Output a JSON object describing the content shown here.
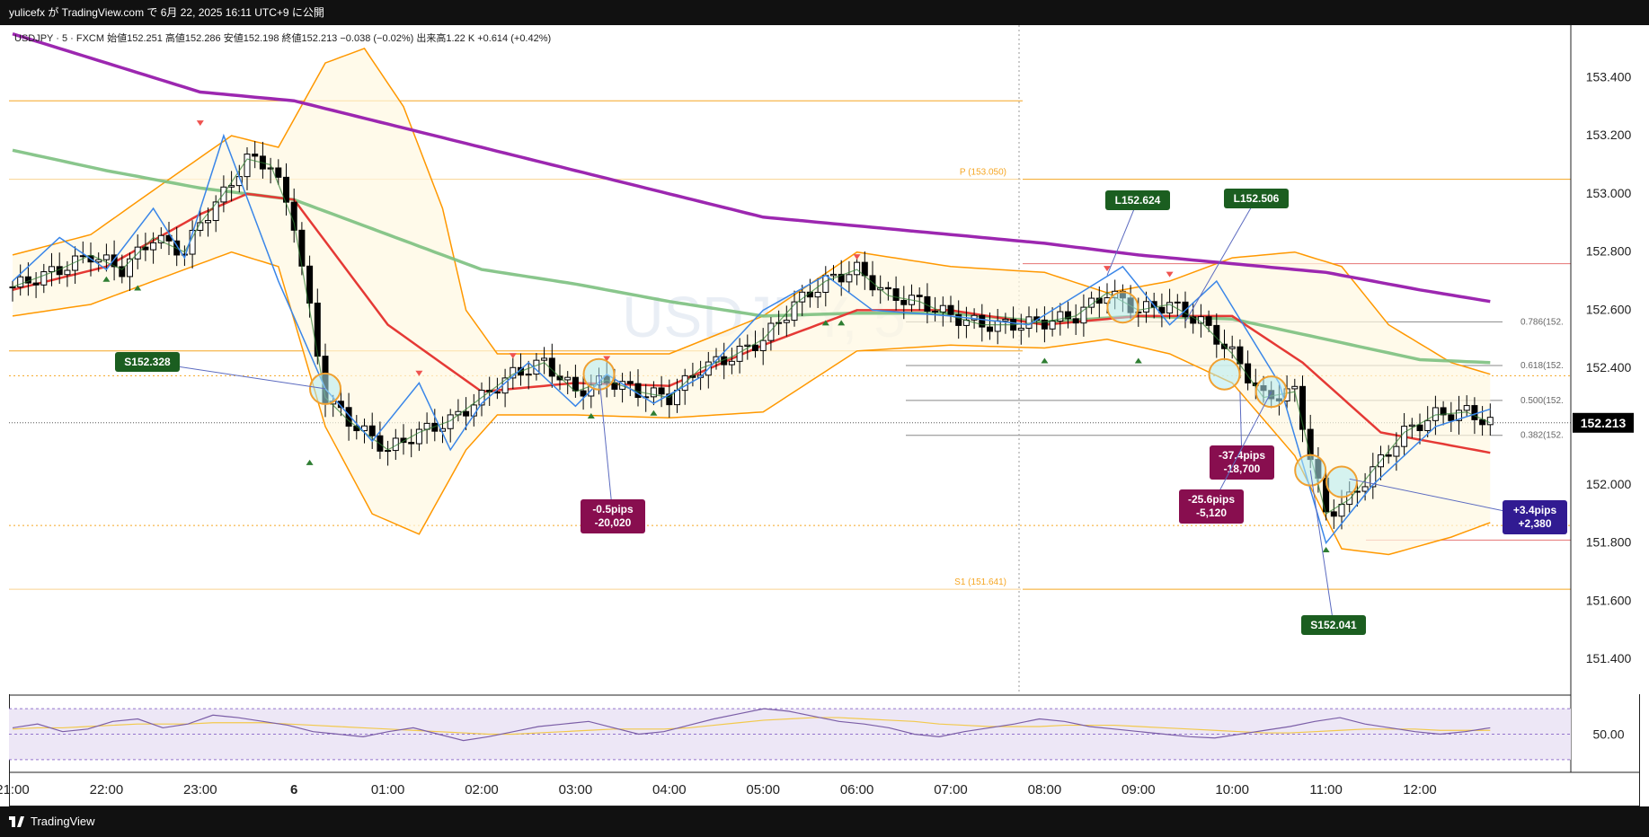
{
  "header": {
    "publish_line": "yulicefx が TradingView.com で 6月 22, 2025 16:11 UTC+9 に公開"
  },
  "symbol_line": "USDJPY · 5 · FXCM  始値152.251  高値152.286  安値152.198  終値152.213  −0.038 (−0.02%)  出来高1.22 K  +0.614 (+0.42%)",
  "watermark": "USDJPY, 5",
  "footer": {
    "brand": "TradingView"
  },
  "colors": {
    "bull": "#ffffff",
    "bear": "#000000",
    "sma_red": "#e53935",
    "sma_green": "#7cc07f",
    "sma_purple": "#9c27b0",
    "bb": "#ff9800",
    "zigzag": "#3a86e8",
    "orange_line": "#f5a623",
    "rsi_line": "#7b5ea7",
    "rsi_ma": "#f2c94c",
    "rsi_bg": "#ede7f6"
  },
  "chart_data": {
    "type": "line",
    "title": "",
    "y_range": [
      151.28,
      153.58
    ],
    "y_ticks": [
      "153.400",
      "153.200",
      "153.000",
      "152.800",
      "152.600",
      "152.400",
      "152.000",
      "151.800",
      "151.600",
      "151.400"
    ],
    "y_tick_values": [
      153.4,
      153.2,
      153.0,
      152.8,
      152.6,
      152.4,
      152.0,
      151.8,
      151.6,
      151.4
    ],
    "last_price_label": "152.213",
    "last_price": 152.213,
    "x_labels": [
      "21:00",
      "22:00",
      "23:00",
      "6",
      "01:00",
      "02:00",
      "03:00",
      "04:00",
      "05:00",
      "06:00",
      "07:00",
      "08:00",
      "09:00",
      "10:00",
      "11:00",
      "12:00"
    ],
    "x_label_bars": [
      0,
      12,
      24,
      36,
      48,
      60,
      72,
      84,
      96,
      108,
      120,
      132,
      144,
      156,
      168,
      180
    ],
    "bars_count": 190,
    "levels": [
      {
        "label": "P (153.050)",
        "price": 153.05
      },
      {
        "label": "S1 (151.641)",
        "price": 151.641
      }
    ],
    "fib": [
      {
        "label": "0.786(152.",
        "price": 152.56
      },
      {
        "label": "0.618(152.",
        "price": 152.41
      },
      {
        "label": "0.500(152.",
        "price": 152.29
      },
      {
        "label": "0.382(152.",
        "price": 152.17
      }
    ],
    "close_anchors": [
      [
        0,
        152.68
      ],
      [
        6,
        152.74
      ],
      [
        10,
        152.79
      ],
      [
        14,
        152.74
      ],
      [
        18,
        152.85
      ],
      [
        22,
        152.8
      ],
      [
        24,
        152.9
      ],
      [
        27,
        153.0
      ],
      [
        30,
        153.12
      ],
      [
        33,
        153.1
      ],
      [
        36,
        152.9
      ],
      [
        40,
        152.3
      ],
      [
        43,
        152.22
      ],
      [
        48,
        152.12
      ],
      [
        52,
        152.18
      ],
      [
        56,
        152.22
      ],
      [
        60,
        152.3
      ],
      [
        64,
        152.38
      ],
      [
        68,
        152.42
      ],
      [
        72,
        152.32
      ],
      [
        76,
        152.36
      ],
      [
        80,
        152.32
      ],
      [
        84,
        152.3
      ],
      [
        88,
        152.4
      ],
      [
        92,
        152.44
      ],
      [
        96,
        152.5
      ],
      [
        100,
        152.62
      ],
      [
        104,
        152.7
      ],
      [
        108,
        152.74
      ],
      [
        112,
        152.65
      ],
      [
        116,
        152.63
      ],
      [
        120,
        152.58
      ],
      [
        124,
        152.55
      ],
      [
        128,
        152.55
      ],
      [
        132,
        152.56
      ],
      [
        136,
        152.58
      ],
      [
        140,
        152.66
      ],
      [
        144,
        152.6
      ],
      [
        148,
        152.62
      ],
      [
        152,
        152.56
      ],
      [
        156,
        152.45
      ],
      [
        160,
        152.3
      ],
      [
        164,
        152.32
      ],
      [
        166,
        152.1
      ],
      [
        168,
        151.9
      ],
      [
        171,
        151.95
      ],
      [
        174,
        152.05
      ],
      [
        178,
        152.18
      ],
      [
        182,
        152.24
      ],
      [
        186,
        152.25
      ],
      [
        189,
        152.213
      ]
    ],
    "sma_red_anchors": [
      [
        0,
        152.67
      ],
      [
        12,
        152.75
      ],
      [
        24,
        152.93
      ],
      [
        30,
        153.0
      ],
      [
        36,
        152.98
      ],
      [
        48,
        152.55
      ],
      [
        60,
        152.32
      ],
      [
        72,
        152.35
      ],
      [
        84,
        152.34
      ],
      [
        96,
        152.48
      ],
      [
        108,
        152.6
      ],
      [
        120,
        152.6
      ],
      [
        132,
        152.55
      ],
      [
        144,
        152.58
      ],
      [
        156,
        152.58
      ],
      [
        165,
        152.42
      ],
      [
        175,
        152.18
      ],
      [
        189,
        152.11
      ]
    ],
    "sma_green_anchors": [
      [
        0,
        153.15
      ],
      [
        12,
        153.08
      ],
      [
        24,
        153.02
      ],
      [
        36,
        152.98
      ],
      [
        48,
        152.86
      ],
      [
        60,
        152.74
      ],
      [
        72,
        152.69
      ],
      [
        84,
        152.63
      ],
      [
        96,
        152.58
      ],
      [
        108,
        152.59
      ],
      [
        120,
        152.59
      ],
      [
        132,
        152.56
      ],
      [
        144,
        152.58
      ],
      [
        156,
        152.57
      ],
      [
        168,
        152.5
      ],
      [
        180,
        152.43
      ],
      [
        189,
        152.42
      ]
    ],
    "sma_purple_anchors": [
      [
        0,
        153.55
      ],
      [
        12,
        153.45
      ],
      [
        24,
        153.35
      ],
      [
        36,
        153.32
      ],
      [
        48,
        153.24
      ],
      [
        60,
        153.16
      ],
      [
        72,
        153.08
      ],
      [
        84,
        153.0
      ],
      [
        96,
        152.92
      ],
      [
        108,
        152.89
      ],
      [
        120,
        152.86
      ],
      [
        132,
        152.83
      ],
      [
        144,
        152.79
      ],
      [
        156,
        152.76
      ],
      [
        168,
        152.73
      ],
      [
        180,
        152.67
      ],
      [
        189,
        152.63
      ]
    ],
    "bb_upper_anchors": [
      [
        0,
        152.79
      ],
      [
        10,
        152.86
      ],
      [
        20,
        153.05
      ],
      [
        28,
        153.2
      ],
      [
        34,
        153.16
      ],
      [
        40,
        153.45
      ],
      [
        45,
        153.5
      ],
      [
        50,
        153.3
      ],
      [
        55,
        152.95
      ],
      [
        58,
        152.6
      ],
      [
        62,
        152.45
      ],
      [
        72,
        152.45
      ],
      [
        84,
        152.45
      ],
      [
        96,
        152.58
      ],
      [
        108,
        152.8
      ],
      [
        120,
        152.75
      ],
      [
        132,
        152.73
      ],
      [
        140,
        152.66
      ],
      [
        148,
        152.7
      ],
      [
        156,
        152.78
      ],
      [
        164,
        152.8
      ],
      [
        170,
        152.75
      ],
      [
        176,
        152.55
      ],
      [
        184,
        152.42
      ],
      [
        189,
        152.38
      ]
    ],
    "bb_lower_anchors": [
      [
        0,
        152.58
      ],
      [
        10,
        152.62
      ],
      [
        20,
        152.72
      ],
      [
        28,
        152.8
      ],
      [
        34,
        152.75
      ],
      [
        40,
        152.2
      ],
      [
        46,
        151.9
      ],
      [
        52,
        151.83
      ],
      [
        58,
        152.12
      ],
      [
        62,
        152.24
      ],
      [
        72,
        152.24
      ],
      [
        84,
        152.23
      ],
      [
        96,
        152.25
      ],
      [
        108,
        152.46
      ],
      [
        120,
        152.48
      ],
      [
        132,
        152.47
      ],
      [
        140,
        152.5
      ],
      [
        148,
        152.45
      ],
      [
        156,
        152.35
      ],
      [
        164,
        152.1
      ],
      [
        170,
        151.78
      ],
      [
        176,
        151.76
      ],
      [
        184,
        151.82
      ],
      [
        189,
        151.87
      ]
    ],
    "zigzag_points": [
      [
        0,
        152.7
      ],
      [
        6,
        152.85
      ],
      [
        12,
        152.74
      ],
      [
        18,
        152.95
      ],
      [
        22,
        152.78
      ],
      [
        27,
        153.2
      ],
      [
        34,
        152.7
      ],
      [
        40,
        152.33
      ],
      [
        46,
        152.15
      ],
      [
        52,
        152.35
      ],
      [
        56,
        152.12
      ],
      [
        60,
        152.28
      ],
      [
        66,
        152.42
      ],
      [
        72,
        152.27
      ],
      [
        76,
        152.38
      ],
      [
        82,
        152.28
      ],
      [
        88,
        152.37
      ],
      [
        96,
        152.6
      ],
      [
        104,
        152.72
      ],
      [
        110,
        152.6
      ],
      [
        120,
        152.58
      ],
      [
        130,
        152.55
      ],
      [
        142,
        152.75
      ],
      [
        148,
        152.55
      ],
      [
        154,
        152.7
      ],
      [
        162,
        152.35
      ],
      [
        168,
        151.8
      ],
      [
        174,
        152.0
      ],
      [
        182,
        152.2
      ],
      [
        189,
        152.26
      ]
    ],
    "signals_down": [
      [
        24,
        153.24
      ],
      [
        52,
        152.38
      ],
      [
        64,
        152.44
      ],
      [
        76,
        152.43
      ],
      [
        108,
        152.78
      ],
      [
        140,
        152.74
      ],
      [
        148,
        152.72
      ]
    ],
    "signals_up": [
      [
        12,
        152.71
      ],
      [
        16,
        152.68
      ],
      [
        38,
        152.08
      ],
      [
        74,
        152.24
      ],
      [
        82,
        152.25
      ],
      [
        104,
        152.56
      ],
      [
        106,
        152.56
      ],
      [
        132,
        152.43
      ],
      [
        144,
        152.43
      ],
      [
        168,
        151.78
      ]
    ],
    "circles": [
      [
        40,
        152.33
      ],
      [
        75,
        152.38
      ],
      [
        142,
        152.61
      ],
      [
        155,
        152.38
      ],
      [
        161,
        152.32
      ],
      [
        166,
        152.05
      ],
      [
        170,
        152.01
      ]
    ],
    "callouts": [
      {
        "text": [
          "S152.328"
        ],
        "type": "short",
        "px": [
          128,
          392
        ],
        "anchor": [
          40,
          152.33
        ]
      },
      {
        "text": [
          "-0.5pips",
          "-20,020"
        ],
        "type": "loss",
        "px": [
          646,
          556
        ],
        "anchor": [
          75,
          152.38
        ]
      },
      {
        "text": [
          "L152.624"
        ],
        "type": "long",
        "px": [
          1230,
          212
        ],
        "anchor": [
          140,
          152.72
        ]
      },
      {
        "text": [
          "L152.506"
        ],
        "type": "long",
        "px": [
          1362,
          210
        ],
        "anchor": [
          150,
          152.56
        ]
      },
      {
        "text": [
          "-37.4pips",
          "-18,700"
        ],
        "type": "loss",
        "px": [
          1346,
          496
        ],
        "anchor": [
          157,
          152.32
        ]
      },
      {
        "text": [
          "-25.6pips",
          "-5,120"
        ],
        "type": "loss",
        "px": [
          1312,
          545
        ],
        "anchor": [
          161,
          152.32
        ]
      },
      {
        "text": [
          "+3.4pips",
          "+2,380"
        ],
        "type": "profit",
        "px": [
          1672,
          557
        ],
        "anchor": [
          171,
          152.02
        ]
      },
      {
        "text": [
          "S152.041"
        ],
        "type": "short",
        "px": [
          1448,
          685
        ],
        "anchor": [
          166,
          152.05
        ]
      }
    ],
    "rsi": {
      "label": "50.00",
      "values": [
        55,
        58,
        52,
        54,
        60,
        62,
        55,
        58,
        65,
        63,
        60,
        57,
        52,
        50,
        48,
        52,
        55,
        50,
        45,
        48,
        52,
        56,
        58,
        60,
        55,
        50,
        52,
        57,
        62,
        66,
        70,
        68,
        64,
        60,
        58,
        55,
        50,
        48,
        52,
        55,
        58,
        62,
        60,
        56,
        54,
        52,
        50,
        48,
        47,
        50,
        53,
        56,
        60,
        63,
        58,
        55,
        52,
        50,
        52,
        55
      ],
      "ma": [
        54,
        55,
        55,
        56,
        57,
        58,
        58,
        58,
        59,
        59,
        59,
        58,
        57,
        56,
        55,
        54,
        53,
        52,
        51,
        50,
        50,
        51,
        52,
        53,
        54,
        54,
        54,
        55,
        57,
        59,
        61,
        62,
        63,
        63,
        62,
        61,
        60,
        58,
        57,
        56,
        56,
        56,
        57,
        57,
        57,
        56,
        55,
        54,
        53,
        52,
        51,
        51,
        52,
        53,
        54,
        54,
        54,
        53,
        53,
        53
      ]
    }
  }
}
